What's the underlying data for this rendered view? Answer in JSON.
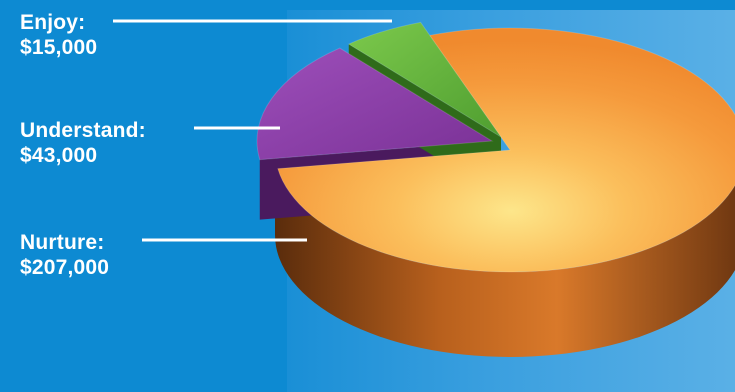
{
  "chart_data": {
    "type": "pie",
    "slices": [
      {
        "name": "Enjoy:",
        "value_label": "$15,000",
        "value": 15000,
        "color": "#5fb83b"
      },
      {
        "name": "Understand:",
        "value_label": "$43,000",
        "value": 43000,
        "color": "#8a3fa3"
      },
      {
        "name": "Nurture:",
        "value_label": "$207,000",
        "value": 207000,
        "color": "#f5a040"
      }
    ]
  }
}
